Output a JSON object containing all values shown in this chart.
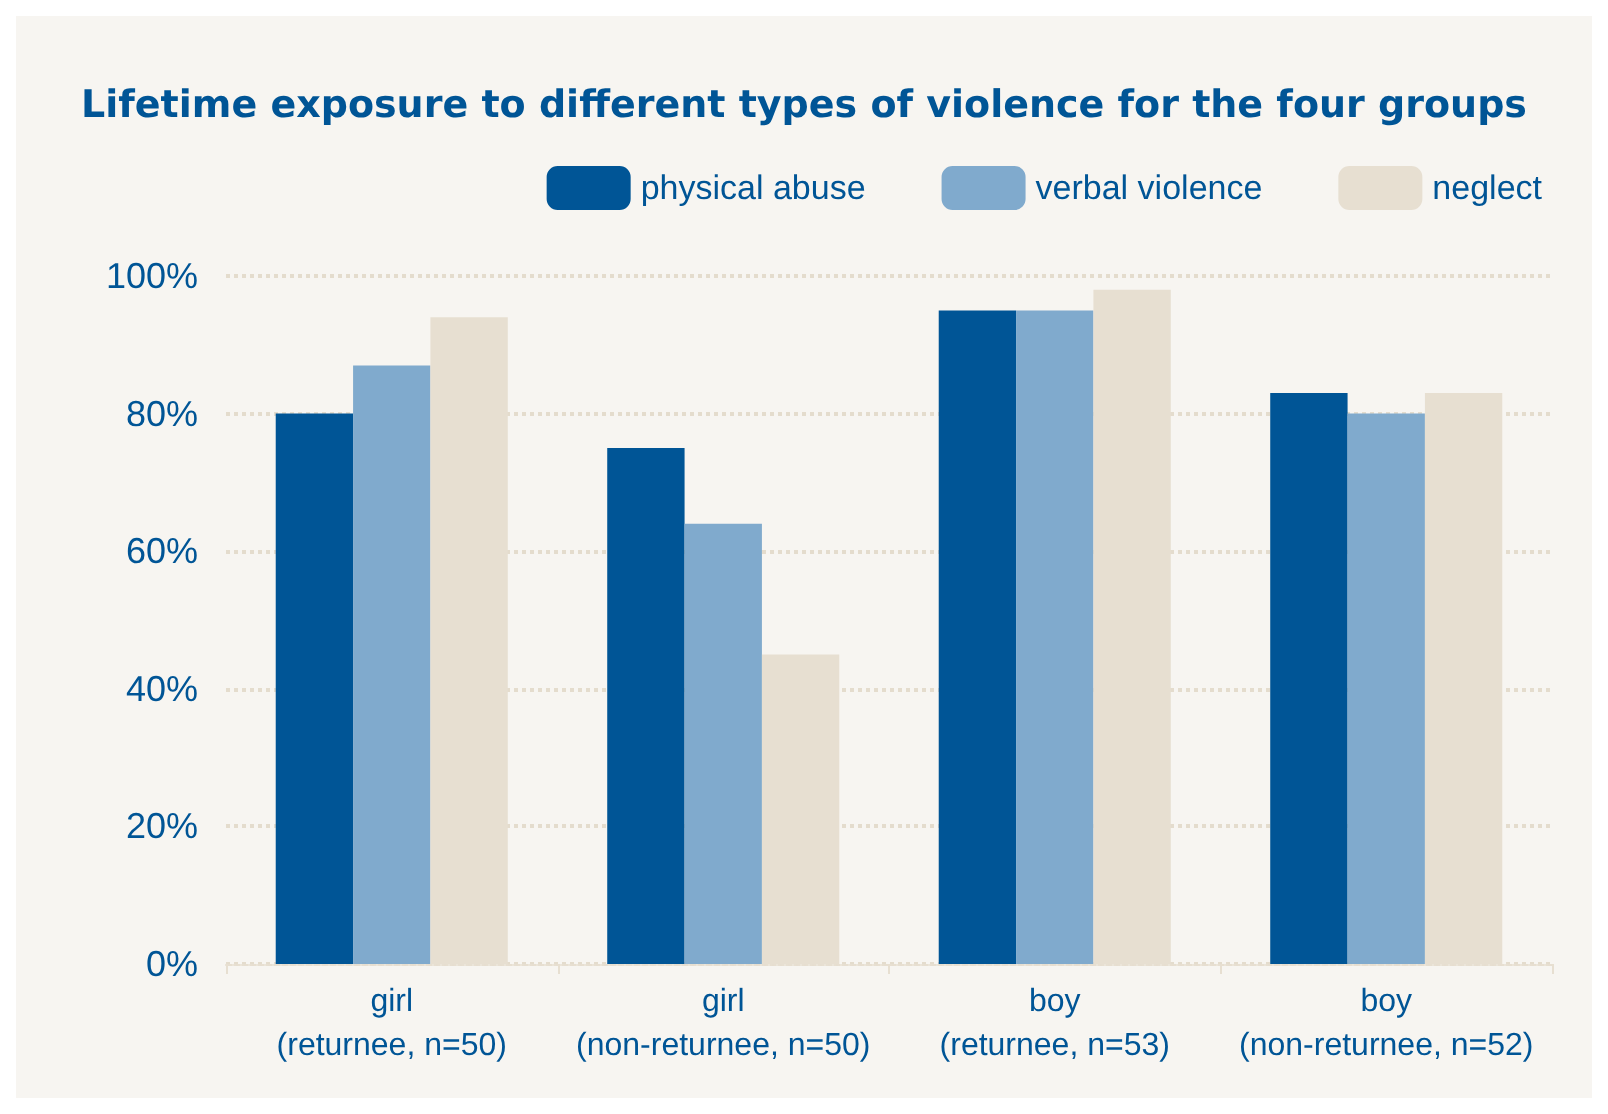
{
  "chart_data": {
    "type": "bar",
    "title": "Lifetime exposure to different types of violence for the four groups",
    "categories": [
      "girl\n(returnee, n=50)",
      "girl\n(non-returnee, n=50)",
      "boy\n(returnee, n=53)",
      "boy\n(non-returnee, n=52)"
    ],
    "series": [
      {
        "name": "physical abuse",
        "color": "#005596",
        "values": [
          80,
          75,
          95,
          83
        ]
      },
      {
        "name": "verbal violence",
        "color": "#80aacd",
        "values": [
          87,
          64,
          95,
          80
        ]
      },
      {
        "name": "neglect",
        "color": "#e7dfd1",
        "values": [
          94,
          45,
          98,
          83
        ]
      }
    ],
    "ylim": [
      0,
      100
    ],
    "yticks": [
      {
        "value": 0,
        "label": "0%"
      },
      {
        "value": 20,
        "label": "20%"
      },
      {
        "value": 40,
        "label": "40%"
      },
      {
        "value": 60,
        "label": "60%"
      },
      {
        "value": 80,
        "label": "80%"
      },
      {
        "value": 100,
        "label": "100%"
      }
    ],
    "grid": "y",
    "legend": "top right"
  }
}
